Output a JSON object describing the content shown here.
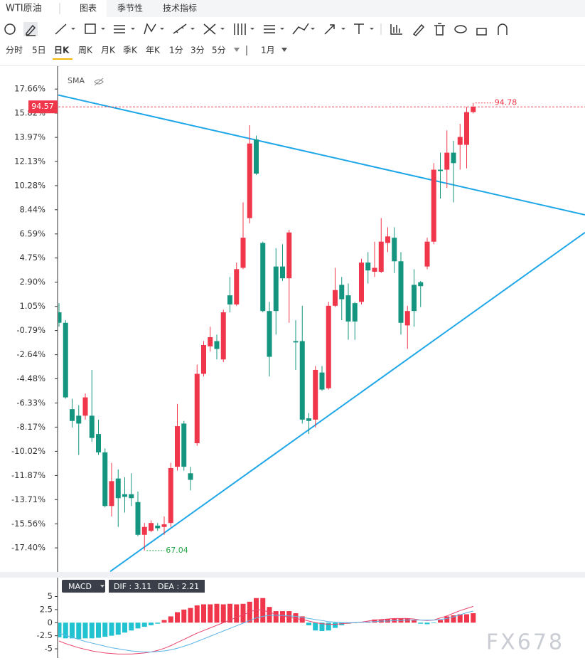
{
  "header": {
    "symbol": "WTI原油",
    "tabs": [
      "图表",
      "季节性",
      "技术指标"
    ]
  },
  "periods": [
    "分时",
    "5日",
    "日K",
    "周K",
    "月K",
    "季K",
    "年K",
    "1分",
    "3分",
    "5分"
  ],
  "range": "1月",
  "indicator": "SMA",
  "watermark": "FX678",
  "chart_data": [
    {
      "type": "candlestick",
      "up_color": "#f0364a",
      "down_color": "#13957f",
      "open": [
        0.6,
        -0.2,
        -6.8,
        -7.3,
        -7.3,
        -7.3,
        -8.7,
        -10.1,
        -14.2,
        -12.1,
        -13.3,
        -13.3,
        -13.9,
        -16.4,
        -16.1,
        -15.7,
        -15.8,
        -15.5,
        -11.2,
        -7.9,
        -11.7,
        -9.4,
        -4.1,
        -2.0,
        -1.6,
        -3.0,
        1.9,
        1.2,
        4.0,
        7.8,
        13.8,
        5.9,
        0.7,
        4.1,
        4.1,
        3.2,
        -1.6,
        -1.6,
        -7.5,
        -7.6,
        -4.0,
        -5.2,
        1.1,
        2.7,
        1.9,
        1.3,
        1.4,
        4.4,
        3.7,
        3.7,
        5.9,
        6.3,
        4.5,
        -0.4,
        2.7,
        2.9,
        4.1,
        6.0,
        11.5,
        11.5,
        12.8,
        13.4,
        13.4,
        15.9
      ],
      "high": [
        1.3,
        0.0,
        -6.0,
        -6.5,
        -5.6,
        -3.8,
        -7.6,
        -9.8,
        -10.9,
        -11.4,
        -12.0,
        -11.7,
        -13.1,
        -15.5,
        -15.3,
        -15.5,
        -15.0,
        -10.9,
        -6.4,
        -7.7,
        -11.2,
        -3.4,
        -1.6,
        -0.5,
        -1.1,
        0.8,
        3.3,
        4.4,
        9.0,
        14.9,
        14.1,
        6.0,
        1.4,
        5.5,
        5.8,
        6.9,
        0.0,
        1.1,
        -7.1,
        -3.5,
        -3.5,
        1.4,
        4.0,
        3.3,
        2.8,
        1.4,
        4.7,
        5.2,
        6.0,
        7.8,
        7.1,
        7.1,
        5.2,
        1.1,
        3.9,
        3.0,
        6.3,
        12.0,
        12.8,
        14.5,
        13.7,
        15.0,
        16.3,
        16.6
      ],
      "low": [
        -0.5,
        -6.0,
        -8.2,
        -10.3,
        -7.6,
        -9.3,
        -10.3,
        -14.3,
        -15.0,
        -15.8,
        -14.7,
        -14.2,
        -16.5,
        -17.6,
        -16.2,
        -16.1,
        -16.4,
        -15.8,
        -11.5,
        -11.5,
        -13.0,
        -9.6,
        -4.3,
        -2.4,
        -3.0,
        -3.2,
        0.6,
        1.1,
        3.9,
        7.4,
        11.1,
        0.6,
        -4.3,
        -1.1,
        3.0,
        -0.2,
        -3.8,
        -7.9,
        -8.7,
        -8.2,
        -5.4,
        -5.3,
        1.0,
        0.0,
        -1.5,
        -1.5,
        1.2,
        2.8,
        3.3,
        3.6,
        5.2,
        3.6,
        -1.1,
        -2.2,
        -0.5,
        1.0,
        3.9,
        5.8,
        9.3,
        10.1,
        9.0,
        11.5,
        11.6,
        15.8
      ],
      "close": [
        -0.2,
        -5.9,
        -7.7,
        -7.9,
        -5.9,
        -9.0,
        -10.1,
        -14.2,
        -12.3,
        -13.6,
        -13.5,
        -13.6,
        -16.4,
        -15.8,
        -15.5,
        -15.9,
        -15.6,
        -11.3,
        -8.1,
        -11.2,
        -12.2,
        -4.1,
        -1.9,
        -1.3,
        -2.2,
        0.6,
        1.2,
        3.9,
        6.3,
        13.5,
        11.2,
        0.7,
        -2.8,
        0.7,
        3.2,
        6.7,
        -1.7,
        -7.6,
        -7.7,
        -3.8,
        -5.3,
        1.1,
        2.3,
        1.6,
        -0.1,
        -0.1,
        4.4,
        3.8,
        4.0,
        6.0,
        6.4,
        4.5,
        -0.2,
        0.7,
        0.7,
        2.6,
        6.0,
        11.5,
        11.4,
        12.8,
        12.0,
        14.0,
        15.9,
        16.3
      ],
      "xlim": [
        -0.1,
        80.0
      ],
      "ylim": [
        -19.24,
        19.41
      ],
      "yticks": [
        {
          "value": 17.66,
          "label": "17.66%"
        },
        {
          "value": 15.82,
          "label": "15.82%"
        },
        {
          "value": 13.97,
          "label": "13.97%"
        },
        {
          "value": 12.13,
          "label": "12.13%"
        },
        {
          "value": 10.28,
          "label": "10.28%"
        },
        {
          "value": 8.44,
          "label": "8.44%"
        },
        {
          "value": 6.59,
          "label": "6.59%"
        },
        {
          "value": 4.75,
          "label": "4.75%"
        },
        {
          "value": 2.9,
          "label": "2.90%"
        },
        {
          "value": 1.05,
          "label": "1.05%"
        },
        {
          "value": -0.79,
          "label": "-0.79%"
        },
        {
          "value": -2.64,
          "label": "-2.64%"
        },
        {
          "value": -4.48,
          "label": "-4.48%"
        },
        {
          "value": -6.33,
          "label": "-6.33%"
        },
        {
          "value": -8.17,
          "label": "-8.17%"
        },
        {
          "value": -10.02,
          "label": "-10.02%"
        },
        {
          "value": -11.87,
          "label": "-11.87%"
        },
        {
          "value": -13.71,
          "label": "-13.71%"
        },
        {
          "value": -15.56,
          "label": "-15.56%"
        },
        {
          "value": -17.4,
          "label": "-17.40%"
        }
      ],
      "price_tag": "94.57",
      "high_label": "94.78",
      "low_label": "67.04",
      "trendline_color": "#1ea7e8",
      "trendlines": [
        {
          "x": [
            -0.1,
            80.0
          ],
          "y": [
            17.2,
            8.05
          ]
        },
        {
          "x": [
            7.8,
            80.0
          ],
          "y": [
            -19.2,
            6.7
          ]
        }
      ]
    },
    {
      "type": "macd",
      "name": "MACD",
      "legend": [
        "DIF : 3.11",
        "DEA : 2.21"
      ],
      "pos_color": "#f0364a",
      "neg_color": "#22c3d0",
      "histogram": [
        -2.8,
        -3,
        -3,
        -3.1,
        -3,
        -3,
        -2.9,
        -2.7,
        -2.5,
        -2.3,
        -1.9,
        -1.5,
        -1.1,
        -0.8,
        -0.5,
        -0.2,
        0.5,
        1.2,
        2,
        2.5,
        2.8,
        3.3,
        3.5,
        3.5,
        3.6,
        3.5,
        3.6,
        3.5,
        3.6,
        4,
        4.7,
        4.7,
        3,
        2.2,
        2.2,
        2.2,
        1.8,
        1.2,
        -0.5,
        -1.5,
        -1.6,
        -1.5,
        -1,
        -0.5,
        -0.2,
        -0.1,
        0.1,
        0.2,
        0.6,
        0.6,
        0.7,
        0.8,
        0.8,
        0.8,
        0.5,
        -0.2,
        -0.3,
        -0.1,
        0.5,
        1.2,
        1.4,
        1.6,
        1.6,
        1.8
      ],
      "series": [
        {
          "name": "DIF",
          "color": "#e8466e",
          "values": [
            -3.5,
            -4.0,
            -4.4,
            -4.8,
            -5.1,
            -5.4,
            -5.6,
            -5.8,
            -5.9,
            -6.0,
            -6.0,
            -6.0,
            -5.9,
            -5.8,
            -5.6,
            -5.3,
            -4.9,
            -4.4,
            -3.8,
            -3.2,
            -2.6,
            -2.0,
            -1.5,
            -1.0,
            -0.5,
            0.0,
            0.5,
            1.0,
            1.5,
            2.0,
            2.5,
            2.4,
            2.0,
            1.6,
            1.3,
            1.0,
            0.8,
            0.6,
            0.3,
            0.0,
            -0.2,
            -0.3,
            -0.3,
            -0.2,
            -0.1,
            0.0,
            0.1,
            0.3,
            0.5,
            0.6,
            0.7,
            0.8,
            0.8,
            0.8,
            0.7,
            0.5,
            0.4,
            0.5,
            0.9,
            1.3,
            1.8,
            2.3,
            2.7,
            3.11
          ]
        },
        {
          "name": "DEA",
          "color": "#5ab4e8",
          "values": [
            -2.0,
            -2.4,
            -2.8,
            -3.2,
            -3.6,
            -3.9,
            -4.2,
            -4.5,
            -4.8,
            -5.0,
            -5.2,
            -5.4,
            -5.5,
            -5.6,
            -5.6,
            -5.5,
            -5.4,
            -5.2,
            -4.9,
            -4.5,
            -4.1,
            -3.6,
            -3.1,
            -2.6,
            -2.1,
            -1.6,
            -1.1,
            -0.6,
            -0.1,
            0.4,
            0.9,
            1.2,
            1.4,
            1.4,
            1.4,
            1.3,
            1.2,
            1.0,
            0.8,
            0.6,
            0.4,
            0.2,
            0.1,
            0.0,
            0.0,
            0.0,
            0.1,
            0.1,
            0.2,
            0.3,
            0.3,
            0.4,
            0.4,
            0.5,
            0.5,
            0.5,
            0.5,
            0.5,
            0.6,
            0.8,
            1.1,
            1.5,
            1.9,
            2.21
          ]
        }
      ],
      "ylim": [
        -6.9,
        8.6
      ],
      "yticks": [
        5,
        2.5,
        0,
        -2.5,
        -5
      ]
    }
  ]
}
